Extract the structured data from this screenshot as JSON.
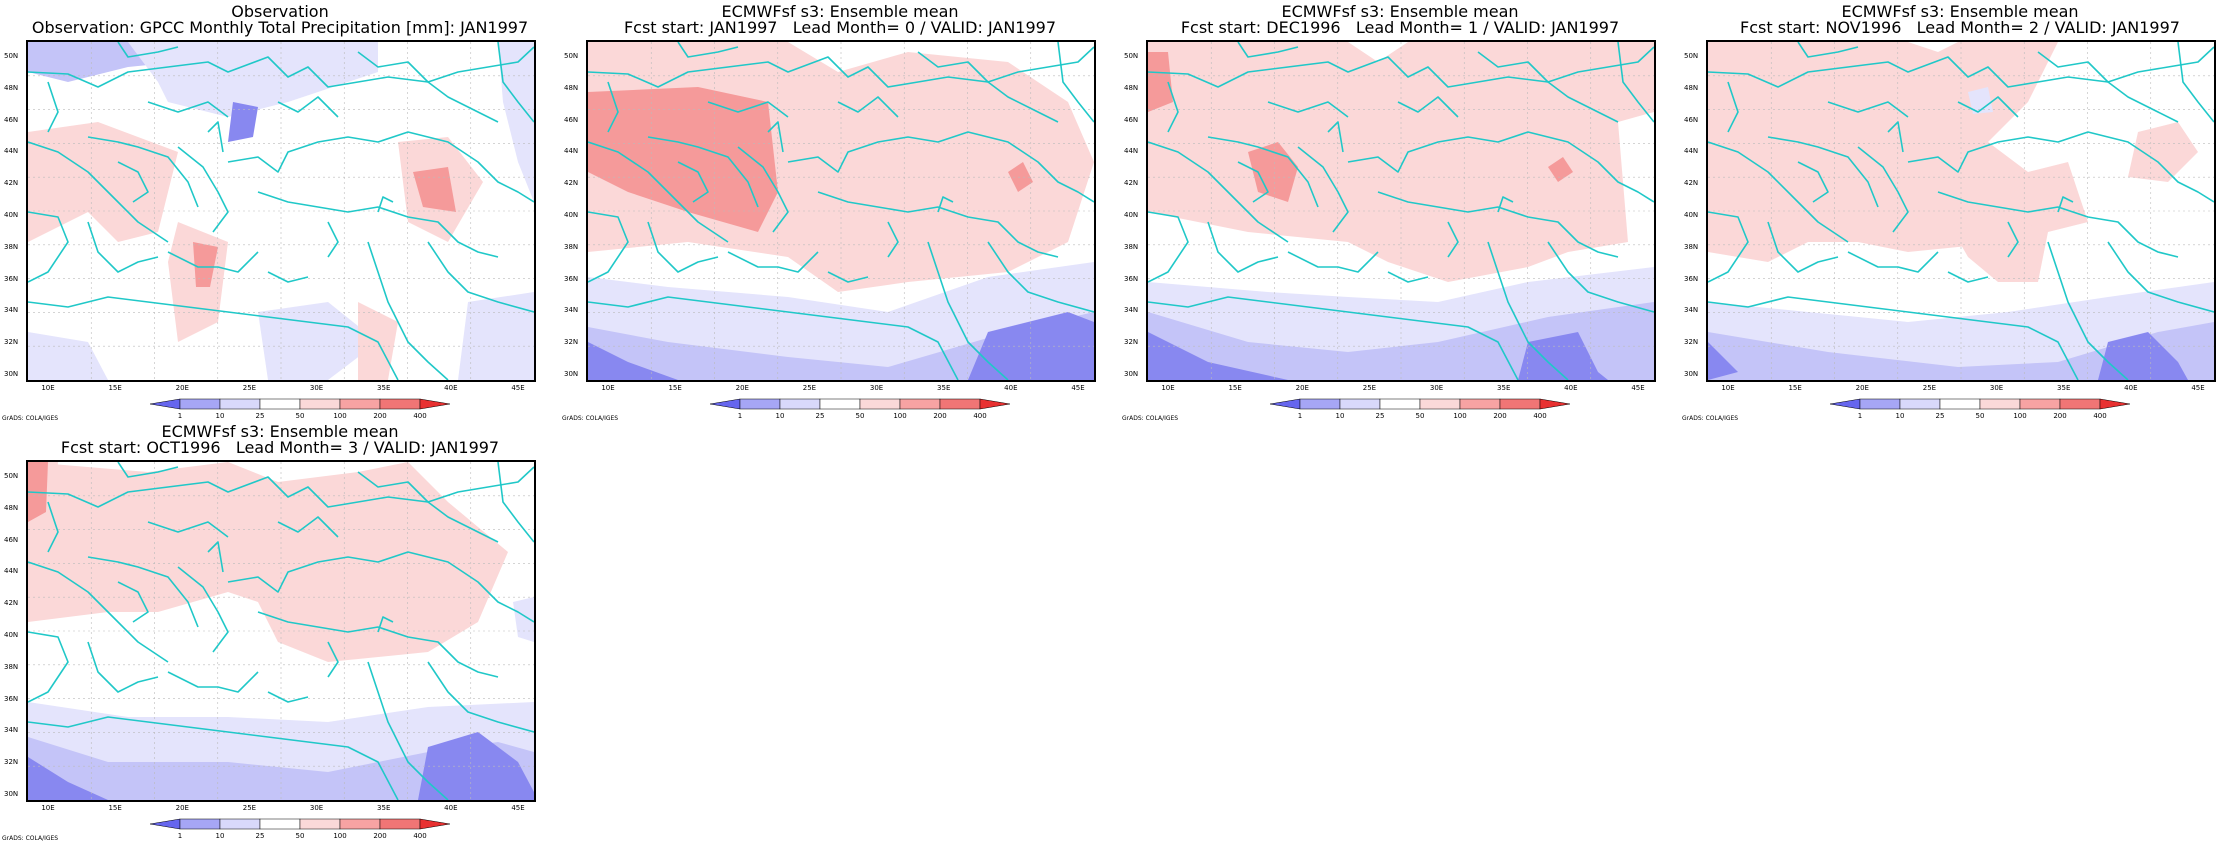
{
  "panels": [
    {
      "title_line1": "Observation",
      "title_line2": "Observation: GPCC Monthly Total Precipitation [mm]: JAN1997",
      "variant": "obs"
    },
    {
      "title_line1": "ECMWFsf s3: Ensemble mean",
      "title_line2": "Fcst start: JAN1997   Lead Month= 0 / VALID: JAN1997",
      "variant": "lead0"
    },
    {
      "title_line1": "ECMWFsf s3: Ensemble mean",
      "title_line2": "Fcst start: DEC1996   Lead Month= 1 / VALID: JAN1997",
      "variant": "lead1"
    },
    {
      "title_line1": "ECMWFsf s3: Ensemble mean",
      "title_line2": "Fcst start: NOV1996   Lead Month= 2 / VALID: JAN1997",
      "variant": "lead2"
    },
    {
      "title_line1": "ECMWFsf s3: Ensemble mean",
      "title_line2": "Fcst start: OCT1996   Lead Month= 3 / VALID: JAN1997",
      "variant": "lead3"
    }
  ],
  "x_ticks": [
    "10E",
    "15E",
    "20E",
    "25E",
    "30E",
    "35E",
    "40E",
    "45E"
  ],
  "y_ticks": [
    "50N",
    "48N",
    "46N",
    "44N",
    "42N",
    "40N",
    "38N",
    "36N",
    "34N",
    "32N",
    "30N"
  ],
  "colorbar": {
    "levels": [
      "1",
      "10",
      "25",
      "50",
      "100",
      "200",
      "400"
    ],
    "colors": [
      "#6666ee",
      "#a6a6f5",
      "#d9d9fb",
      "#ffffff",
      "#fad9d9",
      "#f7a3a3",
      "#f07575",
      "#e83030"
    ]
  },
  "credit": "GrADS: COLA/IGES",
  "colors": {
    "coast": "#20c8c8",
    "grid": "#bbbbbb",
    "blue_dark": "#8888f0",
    "blue_mid": "#c4c4f8",
    "blue_light": "#e4e4fc",
    "red_light": "#fbd8d8",
    "red_mid": "#f59a9a"
  }
}
